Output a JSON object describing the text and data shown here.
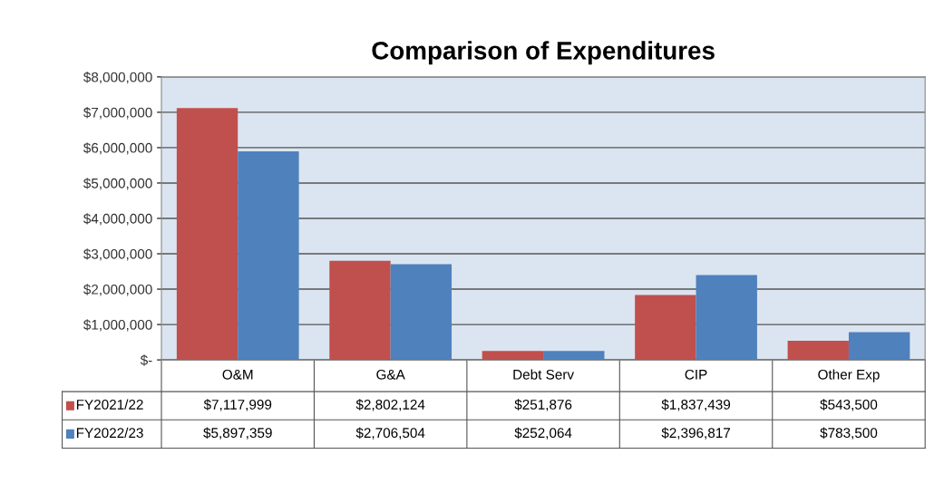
{
  "chart_data": {
    "type": "bar",
    "title": "Comparison of Expenditures",
    "categories": [
      "O&M",
      "G&A",
      "Debt Serv",
      "CIP",
      "Other Exp"
    ],
    "series": [
      {
        "name": "FY2021/22",
        "color": "#c0504d",
        "values": [
          7117999,
          2802124,
          251876,
          1837439,
          543500
        ],
        "value_labels": [
          "$7,117,999",
          "$2,802,124",
          "$251,876",
          "$1,837,439",
          "$543,500"
        ]
      },
      {
        "name": "FY2022/23",
        "color": "#4f81bd",
        "values": [
          5897359,
          2706504,
          252064,
          2396817,
          783500
        ],
        "value_labels": [
          "$5,897,359",
          "$2,706,504",
          "$252,064",
          "$2,396,817",
          "$783,500"
        ]
      }
    ],
    "ylim": [
      0,
      8000000
    ],
    "yticks": [
      {
        "value": 0,
        "label": "$-"
      },
      {
        "value": 1000000,
        "label": "$1,000,000"
      },
      {
        "value": 2000000,
        "label": "$2,000,000"
      },
      {
        "value": 3000000,
        "label": "$3,000,000"
      },
      {
        "value": 4000000,
        "label": "$4,000,000"
      },
      {
        "value": 5000000,
        "label": "$5,000,000"
      },
      {
        "value": 6000000,
        "label": "$6,000,000"
      },
      {
        "value": 7000000,
        "label": "$7,000,000"
      },
      {
        "value": 8000000,
        "label": "$8,000,000"
      }
    ],
    "grid": "y",
    "legend": "bottom"
  }
}
